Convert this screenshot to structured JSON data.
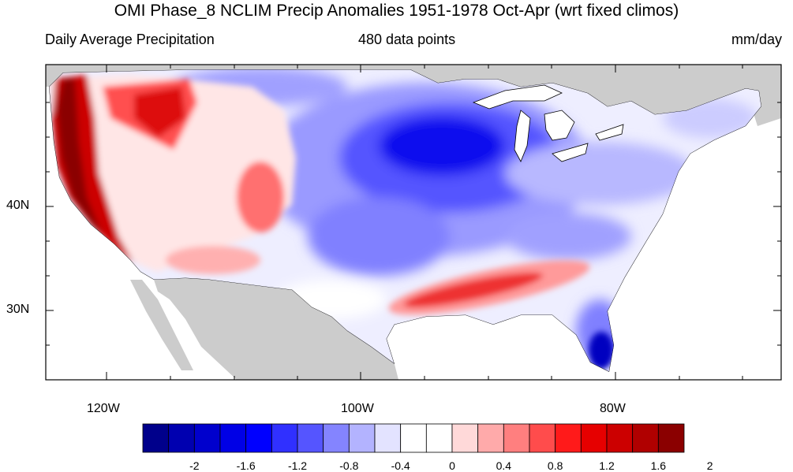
{
  "title": "OMI Phase_8 NCLIM Precip Anomalies 1951-1978 Oct-Apr (wrt fixed climos)",
  "subtitle_left": "Daily Average Precipitation",
  "subtitle_center": "480 data points",
  "subtitle_right": "mm/day",
  "lat_labels": [
    "40N",
    "30N"
  ],
  "lon_labels": [
    "120W",
    "100W",
    "80W"
  ],
  "colorbar": {
    "labels": [
      "-2",
      "-1.6",
      "-1.2",
      "-0.8",
      "-0.4",
      "0",
      "0.4",
      "0.8",
      "1.2",
      "1.6",
      "2"
    ],
    "colors": [
      "#00008b",
      "#0000b0",
      "#0000cd",
      "#0000e6",
      "#0000ff",
      "#3030ff",
      "#5555ff",
      "#8484ff",
      "#b3b3ff",
      "#e3e3ff",
      "#ffffff",
      "#ffffff",
      "#ffd9d9",
      "#ffaaaa",
      "#ff7f7f",
      "#ff4c4c",
      "#ff1a1a",
      "#e60000",
      "#cc0000",
      "#b00000",
      "#8b0000"
    ]
  },
  "colors": {
    "land_missing": "#cccccc",
    "ocean": "#ffffff"
  }
}
